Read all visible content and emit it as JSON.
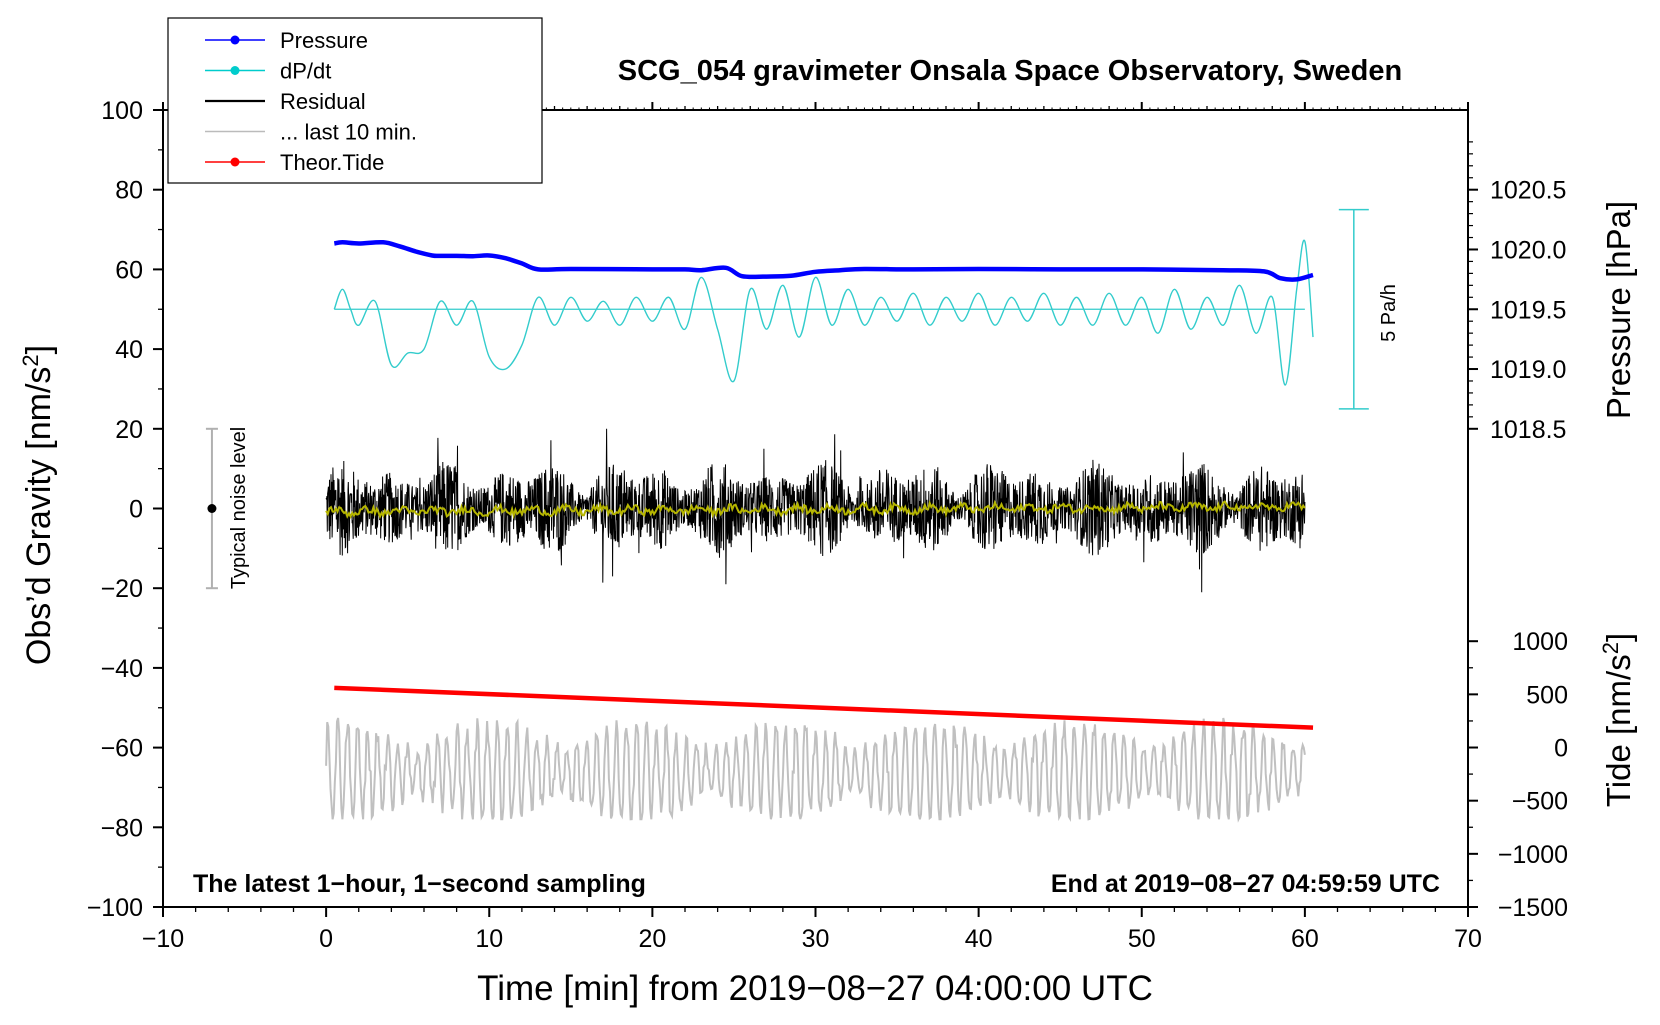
{
  "chart_data": {
    "type": "line",
    "title": "SCG_054 gravimeter Onsala Space Observatory, Sweden",
    "xlabel": "Time [min] from 2019−08−27 04:00:00 UTC",
    "ylabel_left": "Obs’d Gravity [nm/s²]",
    "ylabel_pressure": "Pressure [hPa]",
    "ylabel_tide": "Tide [nm/s²]",
    "xlim": [
      -10,
      70
    ],
    "ylim": [
      -100,
      100
    ],
    "xticks": [
      "−10",
      "0",
      "10",
      "20",
      "30",
      "40",
      "50",
      "60",
      "70"
    ],
    "yticks_left": [
      "−100",
      "−80",
      "−60",
      "−40",
      "−20",
      "0",
      "20",
      "40",
      "60",
      "80",
      "100"
    ],
    "pressure_ticks": [
      "1018.5",
      "1019.0",
      "1019.5",
      "1020.0",
      "1020.5"
    ],
    "pressure_tick_values": [
      1018.5,
      1019.0,
      1019.5,
      1020.0,
      1020.5
    ],
    "pressure_axis": {
      "hpa_at": [
        1018.5,
        1020.5
      ],
      "gravity_at": [
        20,
        80
      ]
    },
    "tide_ticks": [
      "−1500",
      "−1000",
      "−500",
      "0",
      "500",
      "1000"
    ],
    "tide_tick_values": [
      -1500,
      -1000,
      -500,
      0,
      500,
      1000
    ],
    "tide_axis": {
      "tide_at": [
        -1500,
        1000
      ],
      "gravity_at": [
        -100,
        -33.3
      ]
    },
    "legend": {
      "position": "top-left",
      "entries": [
        {
          "label": "Pressure",
          "color": "#0000ff",
          "marker": true
        },
        {
          "label": "dP/dt",
          "color": "#00cccc",
          "marker": true
        },
        {
          "label": "Residual",
          "color": "#000000",
          "marker": false
        },
        {
          "label": "... last 10 min.",
          "color": "#bbbbbb",
          "marker": false
        },
        {
          "label": "Theor.Tide",
          "color": "#ff0000",
          "marker": true
        }
      ]
    },
    "annotations": {
      "bottom_left": "The latest 1−hour, 1−second sampling",
      "bottom_right": "End at 2019−08−27 04:59:59 UTC",
      "noise_label": "Typical noise level",
      "scale_label": "5 Pa/h"
    },
    "noise_bar": {
      "x": -7,
      "center": 0,
      "half_range": 20
    },
    "dpdt_scale_bar": {
      "x": 63,
      "y_low": 25,
      "y_high": 75
    },
    "colors": {
      "pressure": "#0000ff",
      "dpdt": "#33cccc",
      "residual": "#000000",
      "residual_mean": "#b5b500",
      "last10": "#c0c0c0",
      "tide": "#ff0000",
      "noise_bar": "#b0b0b0"
    },
    "series": [
      {
        "name": "Pressure",
        "units": "nm/s² (plotted)",
        "x": [
          0.5,
          1,
          2,
          3.5,
          4.5,
          5.5,
          6.5,
          7,
          8,
          9,
          10,
          11,
          12,
          13,
          15,
          20,
          22,
          23,
          24.5,
          25.5,
          27,
          28.5,
          30,
          31.5,
          33,
          36,
          40,
          45,
          50,
          55,
          57.5,
          58.5,
          59.5,
          60.5
        ],
        "values": [
          66.5,
          66.8,
          66.5,
          66.8,
          65.8,
          64.5,
          63.5,
          63.4,
          63.4,
          63.3,
          63.5,
          62.8,
          61.5,
          60,
          60.1,
          60,
          60,
          59.8,
          60.4,
          58.3,
          58.2,
          58.4,
          59.4,
          59.8,
          60.1,
          60,
          60.1,
          60,
          60,
          59.8,
          59.5,
          57.8,
          57.5,
          58.6
        ]
      },
      {
        "name": "dP/dt",
        "baseline": 50,
        "x": [
          0.5,
          1,
          1.5,
          2,
          3,
          4,
          5,
          6,
          7,
          8,
          9,
          10,
          11,
          12,
          13,
          14,
          15,
          16,
          17,
          18,
          19,
          20,
          21,
          22,
          23,
          24,
          25,
          26,
          27,
          28,
          29,
          30,
          31,
          32,
          33,
          34,
          35,
          36,
          37,
          38,
          39,
          40,
          41,
          42,
          43,
          44,
          45,
          46,
          47,
          48,
          49,
          50,
          51,
          52,
          53,
          54,
          55,
          56,
          57,
          58,
          58.8,
          59.5,
          60,
          60.5
        ],
        "values": [
          50,
          55,
          50,
          46,
          52,
          36,
          39,
          40,
          52,
          46,
          52,
          38,
          35,
          41,
          53,
          46,
          53,
          47,
          52,
          46,
          53,
          47,
          53,
          45,
          58,
          45,
          32,
          55,
          45,
          56,
          43,
          58,
          46,
          55,
          46,
          53,
          47,
          54,
          46,
          53,
          47,
          54,
          46,
          53,
          47,
          54,
          46,
          53,
          46,
          54,
          46,
          53,
          44,
          55,
          45,
          53,
          46,
          56,
          44,
          53,
          31,
          55,
          67,
          43
        ]
      },
      {
        "name": "Residual",
        "x_range": [
          0,
          60
        ],
        "typical_amplitude": 10,
        "max": 22,
        "min": -21
      },
      {
        "name": "... last 10 min.",
        "x_range": [
          0,
          60
        ],
        "center": -66,
        "amplitude_range": [
          -78,
          -47
        ]
      },
      {
        "name": "Theor.Tide",
        "x": [
          0.5,
          60.5
        ],
        "values": [
          -45,
          -55
        ]
      }
    ]
  }
}
